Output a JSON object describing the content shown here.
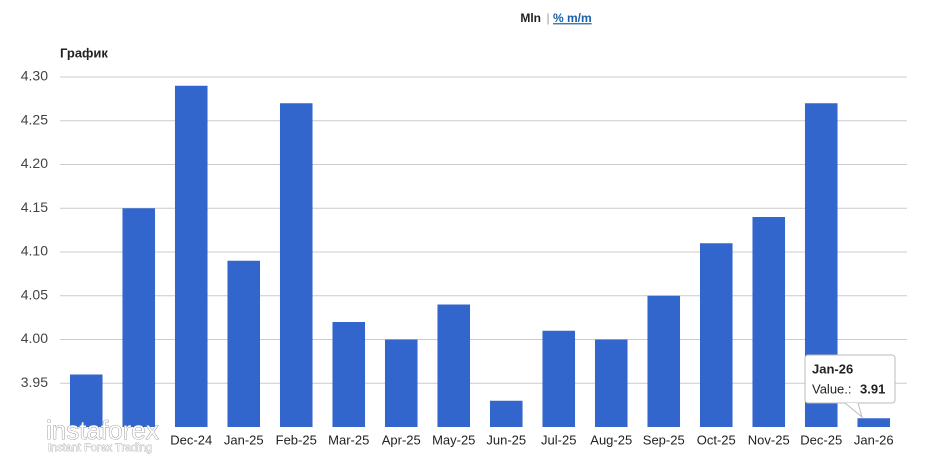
{
  "chart_data": {
    "type": "bar",
    "title": "График",
    "categories": [
      null,
      null,
      "Dec-24",
      "Jan-25",
      "Feb-25",
      "Mar-25",
      "Apr-25",
      "May-25",
      "Jun-25",
      "Jul-25",
      "Aug-25",
      "Sep-25",
      "Oct-25",
      "Nov-25",
      "Dec-25",
      "Jan-26"
    ],
    "values": [
      3.96,
      4.15,
      4.29,
      4.09,
      4.27,
      4.02,
      4.0,
      4.04,
      3.93,
      4.01,
      4.0,
      4.05,
      4.11,
      4.14,
      4.27,
      3.91
    ],
    "color": "#3366cc",
    "ylim": [
      3.9,
      4.3
    ],
    "yticks": [
      {
        "value": 3.95,
        "label": "3.95"
      },
      {
        "value": 4.0,
        "label": "4.00"
      },
      {
        "value": 4.05,
        "label": "4.05"
      },
      {
        "value": 4.1,
        "label": "4.10"
      },
      {
        "value": 4.15,
        "label": "4.15"
      },
      {
        "value": 4.2,
        "label": "4.20"
      },
      {
        "value": 4.25,
        "label": "4.25"
      },
      {
        "value": 4.3,
        "label": "4.30"
      }
    ],
    "grid": true
  },
  "ui": {
    "units": "Mln",
    "separator": "|",
    "toggle": "% m/m",
    "tooltip_label": "Value.:",
    "logo": "instaforex",
    "logo_tagline": "Instant Forex Trading"
  }
}
